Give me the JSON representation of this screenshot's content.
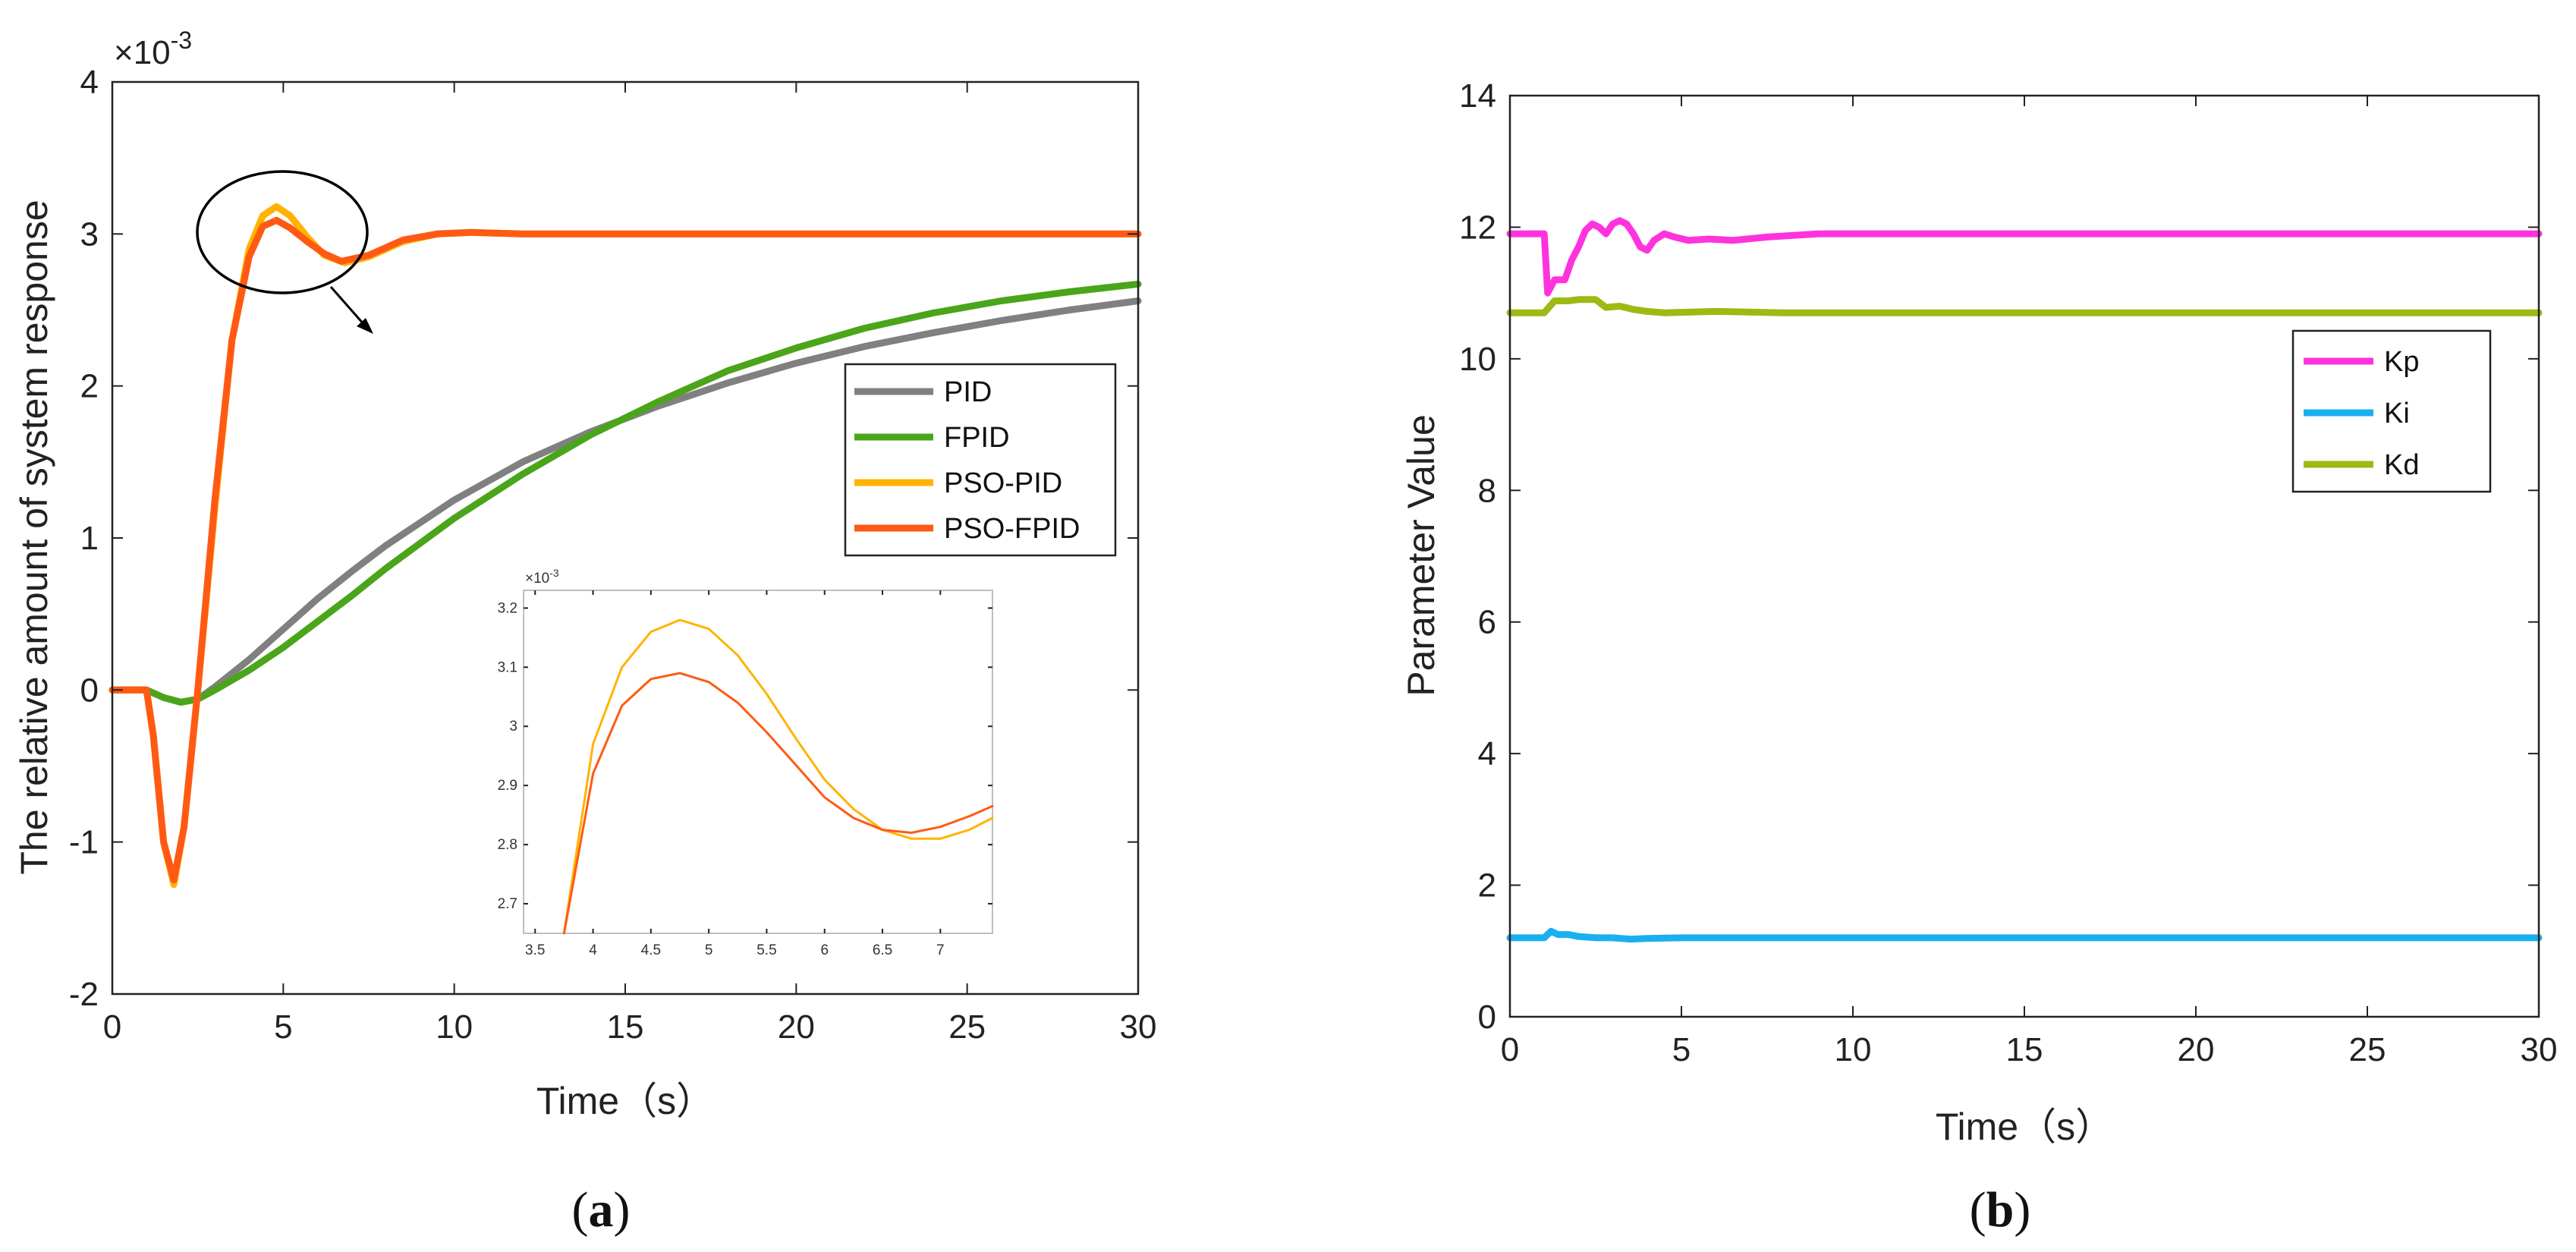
{
  "chart_data": [
    {
      "type": "line",
      "panel_label": "a",
      "title": "",
      "xlabel": "Time（s）",
      "ylabel": "The relative amount of system response",
      "xlim": [
        0,
        30
      ],
      "ylim": [
        -2,
        4
      ],
      "xticks": [
        "0",
        "5",
        "10",
        "15",
        "20",
        "25",
        "30"
      ],
      "yticks": [
        "-2",
        "-1",
        "0",
        "1",
        "2",
        "3",
        "4"
      ],
      "y_exponent_label": "×10",
      "y_exponent_power": "-3",
      "grid": false,
      "legend_position": "right",
      "series": [
        {
          "name": "PID",
          "color": "#808080",
          "x": [
            0,
            1,
            1.5,
            2,
            2.5,
            3,
            4,
            5,
            6,
            7,
            8,
            10,
            12,
            14,
            16,
            18,
            20,
            22,
            24,
            26,
            28,
            30
          ],
          "y": [
            0,
            0,
            -0.05,
            -0.08,
            -0.06,
            0.02,
            0.2,
            0.4,
            0.6,
            0.78,
            0.95,
            1.25,
            1.5,
            1.7,
            1.87,
            2.02,
            2.15,
            2.26,
            2.35,
            2.43,
            2.5,
            2.56
          ]
        },
        {
          "name": "FPID",
          "color": "#4aa51a",
          "x": [
            0,
            1,
            1.5,
            2,
            2.5,
            3,
            4,
            5,
            6,
            7,
            8,
            10,
            12,
            14,
            16,
            18,
            20,
            22,
            24,
            26,
            28,
            30
          ],
          "y": [
            0,
            0,
            -0.05,
            -0.08,
            -0.06,
            0.0,
            0.13,
            0.28,
            0.45,
            0.62,
            0.8,
            1.13,
            1.42,
            1.68,
            1.9,
            2.1,
            2.25,
            2.38,
            2.48,
            2.56,
            2.62,
            2.67
          ]
        },
        {
          "name": "PSO-PID",
          "color": "#ffb300",
          "x": [
            0,
            1,
            1.2,
            1.5,
            1.8,
            2.1,
            2.5,
            3,
            3.5,
            4,
            4.4,
            4.8,
            5.2,
            5.7,
            6.2,
            6.8,
            7.5,
            8.5,
            9.5,
            10.5,
            12,
            15,
            20,
            25,
            30
          ],
          "y": [
            0,
            0,
            -0.3,
            -1.0,
            -1.28,
            -0.9,
            0.0,
            1.2,
            2.3,
            2.9,
            3.12,
            3.18,
            3.12,
            2.98,
            2.86,
            2.81,
            2.85,
            2.95,
            3.0,
            3.01,
            3.0,
            3.0,
            3.0,
            3.0,
            3.0
          ]
        },
        {
          "name": "PSO-FPID",
          "color": "#ff5a14",
          "x": [
            0,
            1,
            1.2,
            1.5,
            1.8,
            2.1,
            2.5,
            3,
            3.5,
            4,
            4.4,
            4.8,
            5.2,
            5.7,
            6.2,
            6.7,
            7.5,
            8.5,
            9.5,
            10.5,
            12,
            15,
            20,
            25,
            30
          ],
          "y": [
            0,
            0,
            -0.3,
            -1.0,
            -1.25,
            -0.9,
            0.0,
            1.25,
            2.3,
            2.85,
            3.05,
            3.09,
            3.04,
            2.95,
            2.87,
            2.82,
            2.86,
            2.96,
            3.0,
            3.01,
            3.0,
            3.0,
            3.0,
            3.0,
            3.0
          ]
        }
      ],
      "inset": {
        "xlim": [
          3.4,
          7.45
        ],
        "ylim": [
          2.65,
          3.23
        ],
        "xticks": [
          "3.5",
          "4",
          "4.5",
          "5",
          "5.5",
          "6",
          "6.5",
          "7"
        ],
        "yticks": [
          "2.7",
          "2.8",
          "2.9",
          "3",
          "3.1",
          "3.2"
        ],
        "y_exponent_label": "×10",
        "y_exponent_power": "-3",
        "series": [
          {
            "name": "PSO-PID",
            "color": "#ffb300",
            "x": [
              3.75,
              4.0,
              4.25,
              4.5,
              4.75,
              5.0,
              5.25,
              5.5,
              5.75,
              6.0,
              6.25,
              6.5,
              6.75,
              7.0,
              7.25,
              7.45
            ],
            "y": [
              2.65,
              2.97,
              3.1,
              3.16,
              3.18,
              3.165,
              3.12,
              3.055,
              2.98,
              2.91,
              2.86,
              2.825,
              2.81,
              2.81,
              2.825,
              2.845
            ]
          },
          {
            "name": "PSO-FPID",
            "color": "#ff5a14",
            "x": [
              3.75,
              4.0,
              4.25,
              4.5,
              4.75,
              5.0,
              5.25,
              5.5,
              5.75,
              6.0,
              6.25,
              6.5,
              6.75,
              7.0,
              7.25,
              7.45
            ],
            "y": [
              2.65,
              2.92,
              3.035,
              3.08,
              3.09,
              3.075,
              3.04,
              2.99,
              2.935,
              2.88,
              2.845,
              2.825,
              2.82,
              2.83,
              2.848,
              2.865
            ]
          }
        ]
      }
    },
    {
      "type": "line",
      "panel_label": "b",
      "title": "",
      "xlabel": "Time（s）",
      "ylabel": "Parameter Value",
      "xlim": [
        0,
        30
      ],
      "ylim": [
        0,
        14
      ],
      "xticks": [
        "0",
        "5",
        "10",
        "15",
        "20",
        "25",
        "30"
      ],
      "yticks": [
        "0",
        "2",
        "4",
        "6",
        "8",
        "10",
        "12",
        "14"
      ],
      "grid": false,
      "legend_position": "top-right",
      "series": [
        {
          "name": "Kp",
          "color": "#ff33dd",
          "x": [
            0,
            1,
            1.1,
            1.3,
            1.6,
            1.8,
            2.0,
            2.2,
            2.4,
            2.6,
            2.8,
            3.0,
            3.2,
            3.4,
            3.6,
            3.8,
            4.0,
            4.2,
            4.5,
            4.8,
            5.2,
            5.8,
            6.5,
            7.5,
            9,
            12,
            20,
            30
          ],
          "y": [
            11.9,
            11.9,
            11.0,
            11.2,
            11.2,
            11.5,
            11.7,
            11.95,
            12.05,
            12.0,
            11.9,
            12.05,
            12.1,
            12.05,
            11.9,
            11.7,
            11.65,
            11.8,
            11.9,
            11.85,
            11.8,
            11.82,
            11.8,
            11.85,
            11.9,
            11.9,
            11.9,
            11.9
          ]
        },
        {
          "name": "Ki",
          "color": "#1ab0f0",
          "x": [
            0,
            1,
            1.2,
            1.4,
            1.7,
            2,
            2.5,
            3,
            3.5,
            4,
            5,
            6,
            8,
            30
          ],
          "y": [
            1.2,
            1.2,
            1.3,
            1.25,
            1.25,
            1.22,
            1.2,
            1.2,
            1.18,
            1.19,
            1.2,
            1.2,
            1.2,
            1.2
          ]
        },
        {
          "name": "Kd",
          "color": "#9cba14",
          "x": [
            0,
            1,
            1.3,
            1.7,
            2,
            2.5,
            2.8,
            3.2,
            3.6,
            4,
            4.5,
            6,
            8,
            30
          ],
          "y": [
            10.7,
            10.7,
            10.88,
            10.88,
            10.9,
            10.9,
            10.78,
            10.8,
            10.75,
            10.72,
            10.7,
            10.72,
            10.7,
            10.7
          ]
        }
      ]
    }
  ]
}
